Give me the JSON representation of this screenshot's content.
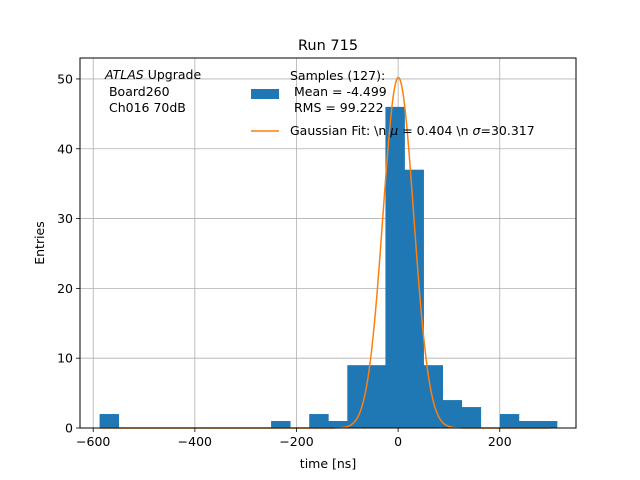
{
  "chart_data": {
    "type": "bar",
    "title": "Run 715",
    "xlabel": "time [ns]",
    "ylabel": "Entries",
    "xlim": [
      -626,
      350
    ],
    "ylim": [
      0,
      53
    ],
    "grid": true,
    "xticks": [
      -600,
      -400,
      -200,
      0,
      200
    ],
    "xtick_labels": [
      "−600",
      "−400",
      "−200",
      "0",
      "200"
    ],
    "yticks": [
      0,
      10,
      20,
      30,
      40,
      50
    ],
    "ytick_labels": [
      "0",
      "10",
      "20",
      "30",
      "40",
      "50"
    ],
    "bar_color": "#1f77b4",
    "fit_color": "#ff7f0e",
    "histogram": {
      "bin_width": 37.5,
      "bins": [
        {
          "x0": -587.5,
          "count": 2
        },
        {
          "x0": -550,
          "count": 0
        },
        {
          "x0": -512.5,
          "count": 0
        },
        {
          "x0": -475,
          "count": 0
        },
        {
          "x0": -437.5,
          "count": 0
        },
        {
          "x0": -400,
          "count": 0
        },
        {
          "x0": -362.5,
          "count": 0
        },
        {
          "x0": -325,
          "count": 0
        },
        {
          "x0": -287.5,
          "count": 0
        },
        {
          "x0": -250,
          "count": 1
        },
        {
          "x0": -212.5,
          "count": 0
        },
        {
          "x0": -175,
          "count": 2
        },
        {
          "x0": -137.5,
          "count": 1
        },
        {
          "x0": -100,
          "count": 9
        },
        {
          "x0": -62.5,
          "count": 9
        },
        {
          "x0": -25,
          "count": 46
        },
        {
          "x0": 12.5,
          "count": 37
        },
        {
          "x0": 50,
          "count": 9
        },
        {
          "x0": 87.5,
          "count": 4
        },
        {
          "x0": 125,
          "count": 3
        },
        {
          "x0": 162.5,
          "count": 0
        },
        {
          "x0": 200,
          "count": 2
        },
        {
          "x0": 237.5,
          "count": 1
        },
        {
          "x0": 275,
          "count": 1
        }
      ]
    },
    "gaussian_fit": {
      "amplitude": 50.2,
      "mu": 0.404,
      "sigma": 30.317,
      "x_range": [
        -585,
        300
      ]
    },
    "annotation": {
      "line1_italic": "ATLAS",
      "line1_rest": " Upgrade",
      "line2": " Board260",
      "line3": " Ch016 70dB"
    },
    "legend": {
      "placement": "top-right",
      "hist_label_line1": "Samples (127):",
      "hist_label_line2": " Mean = -4.499",
      "hist_label_line3": " RMS = 99.222",
      "fit_label_prefix": "Gaussian Fit: \\n ",
      "fit_label_mu_sym": "μ",
      "fit_label_mu_val": " = 0.404 \\n ",
      "fit_label_sigma_sym": "σ",
      "fit_label_sigma_val": "=30.317"
    }
  }
}
